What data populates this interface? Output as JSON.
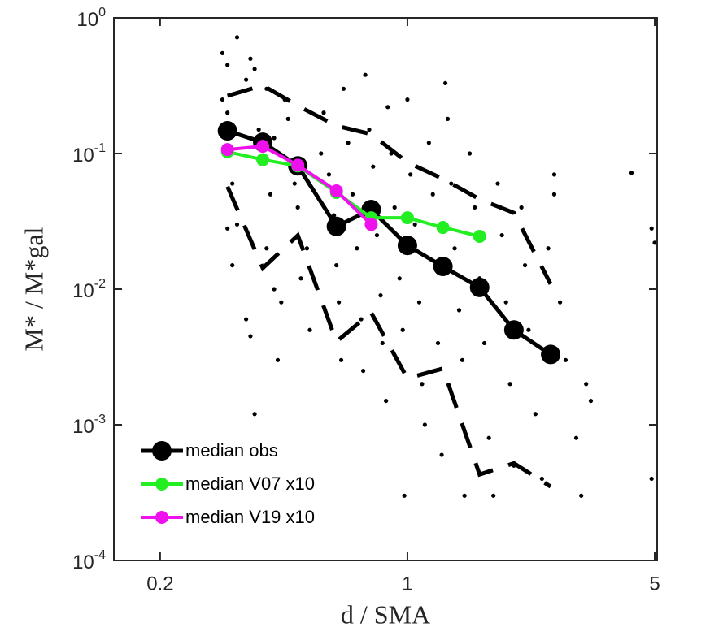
{
  "chart_data": {
    "type": "line",
    "xlabel": "d / SMA",
    "ylabel": "M* / M*gal",
    "xscale": "log",
    "yscale": "log",
    "xlim": [
      0.148,
      5.08
    ],
    "ylim": [
      0.0001,
      1
    ],
    "xticks": [
      0.2,
      1,
      5
    ],
    "yticks": [
      {
        "value": 0.0001,
        "label": "10^-4"
      },
      {
        "value": 0.001,
        "label": "10^-3"
      },
      {
        "value": 0.01,
        "label": "10^-2"
      },
      {
        "value": 0.1,
        "label": "10^-1"
      },
      {
        "value": 1,
        "label": "10^0"
      }
    ],
    "legend": "lower left",
    "series": [
      {
        "color": "#000000",
        "line": "none",
        "marker": "dot",
        "x": [
          0.3,
          0.33,
          0.31,
          0.3,
          0.31,
          0.32,
          0.31,
          0.32,
          0.33,
          0.35,
          0.36,
          0.37,
          0.35,
          0.36,
          0.37,
          0.38,
          0.4,
          0.42,
          0.41,
          0.4,
          0.42,
          0.43,
          0.44,
          0.45,
          0.46,
          0.48,
          0.49,
          0.5,
          0.52,
          0.53,
          0.55,
          0.56,
          0.57,
          0.58,
          0.6,
          0.62,
          0.63,
          0.64,
          0.65,
          0.66,
          0.68,
          0.7,
          0.72,
          0.74,
          0.75,
          0.76,
          0.78,
          0.8,
          0.82,
          0.84,
          0.85,
          0.87,
          0.88,
          0.9,
          0.92,
          0.95,
          0.97,
          0.98,
          1.0,
          1.02,
          1.05,
          1.08,
          1.1,
          1.12,
          1.15,
          1.18,
          1.2,
          1.22,
          1.25,
          1.28,
          1.3,
          1.33,
          1.36,
          1.4,
          1.43,
          1.45,
          1.5,
          1.55,
          1.6,
          1.65,
          1.7,
          1.75,
          1.8,
          1.85,
          1.9,
          1.95,
          2.0,
          2.1,
          2.15,
          2.2,
          2.3,
          2.4,
          2.5,
          2.6,
          2.6,
          2.7,
          2.8,
          3.0,
          3.1,
          3.2,
          3.3,
          4.3,
          4.9,
          5.0,
          4.9
        ],
        "values": [
          0.55,
          0.72,
          0.45,
          0.25,
          0.2,
          0.06,
          0.028,
          0.015,
          0.03,
          0.006,
          0.0045,
          0.0012,
          0.35,
          0.5,
          0.42,
          0.15,
          0.3,
          0.13,
          0.05,
          0.02,
          0.01,
          0.003,
          0.008,
          0.25,
          0.18,
          0.06,
          0.04,
          0.012,
          0.02,
          0.005,
          0.0005,
          0.0004,
          0.1,
          0.2,
          0.07,
          0.035,
          0.015,
          0.008,
          0.003,
          0.3,
          0.12,
          0.05,
          0.02,
          0.006,
          0.0025,
          0.38,
          0.15,
          0.08,
          0.025,
          0.009,
          0.004,
          0.0015,
          0.22,
          0.1,
          0.04,
          0.012,
          0.005,
          0.0003,
          0.25,
          0.07,
          0.03,
          0.008,
          0.002,
          0.001,
          0.12,
          0.05,
          0.015,
          0.004,
          0.0006,
          0.33,
          0.18,
          0.06,
          0.02,
          0.007,
          0.003,
          0.0003,
          0.1,
          0.04,
          0.012,
          0.004,
          0.0008,
          0.0003,
          0.06,
          0.025,
          0.008,
          0.002,
          0.0005,
          0.04,
          0.015,
          0.005,
          0.0012,
          0.0004,
          0.02,
          0.07,
          0.05,
          0.008,
          0.003,
          0.0008,
          0.0003,
          0.002,
          0.0015,
          0.072,
          0.028,
          0.022,
          0.0004
        ]
      },
      {
        "color": "#000000",
        "line": "dashed",
        "marker": "none",
        "x": [
          0.31,
          0.39,
          0.49,
          0.63,
          0.79,
          1.0,
          1.26,
          1.6,
          2.0,
          2.54
        ],
        "values": [
          0.266,
          0.318,
          0.225,
          0.16,
          0.139,
          0.086,
          0.065,
          0.046,
          0.0365,
          0.0109
        ]
      },
      {
        "color": "#000000",
        "line": "dashed",
        "marker": "none",
        "x": [
          0.31,
          0.39,
          0.49,
          0.63,
          0.79,
          1.0,
          1.26,
          1.6,
          2.0,
          2.54
        ],
        "values": [
          0.057,
          0.0143,
          0.0249,
          0.0041,
          0.0067,
          0.0022,
          0.0026,
          0.00043,
          0.00052,
          0.00035
        ]
      },
      {
        "name": "median obs",
        "color": "#000000",
        "line": "solid",
        "marker": "large",
        "x": [
          0.31,
          0.39,
          0.49,
          0.63,
          0.79,
          1.0,
          1.26,
          1.6,
          2.0,
          2.54
        ],
        "values": [
          0.147,
          0.121,
          0.081,
          0.029,
          0.0386,
          0.021,
          0.0147,
          0.0103,
          0.005,
          0.0033
        ]
      },
      {
        "name": "median V07 x10",
        "color": "#22ee22",
        "line": "solid",
        "marker": "medium",
        "x": [
          0.31,
          0.39,
          0.49,
          0.63,
          0.79,
          1.0,
          1.26,
          1.6
        ],
        "values": [
          0.103,
          0.09,
          0.081,
          0.0516,
          0.0336,
          0.0336,
          0.0285,
          0.0245
        ]
      },
      {
        "name": "median V19 x10",
        "color": "#ee11ee",
        "line": "solid",
        "marker": "medium",
        "x": [
          0.31,
          0.39,
          0.49,
          0.63,
          0.79
        ],
        "values": [
          0.107,
          0.113,
          0.082,
          0.053,
          0.03
        ]
      }
    ]
  }
}
